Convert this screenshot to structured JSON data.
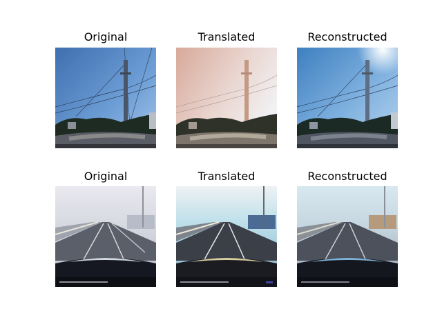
{
  "figure": {
    "rows": [
      {
        "panels": [
          {
            "title": "Original",
            "scene": "clear-sky-road-utility-pole"
          },
          {
            "title": "Translated",
            "scene": "hazy-pink-sky-road-utility-pole"
          },
          {
            "title": "Reconstructed",
            "scene": "clear-sky-road-utility-pole"
          }
        ]
      },
      {
        "panels": [
          {
            "title": "Original",
            "scene": "foggy-highway-dashcam"
          },
          {
            "title": "Translated",
            "scene": "clear-highway-dashcam"
          },
          {
            "title": "Reconstructed",
            "scene": "reconstructed-foggy-highway-dashcam"
          }
        ]
      }
    ]
  }
}
